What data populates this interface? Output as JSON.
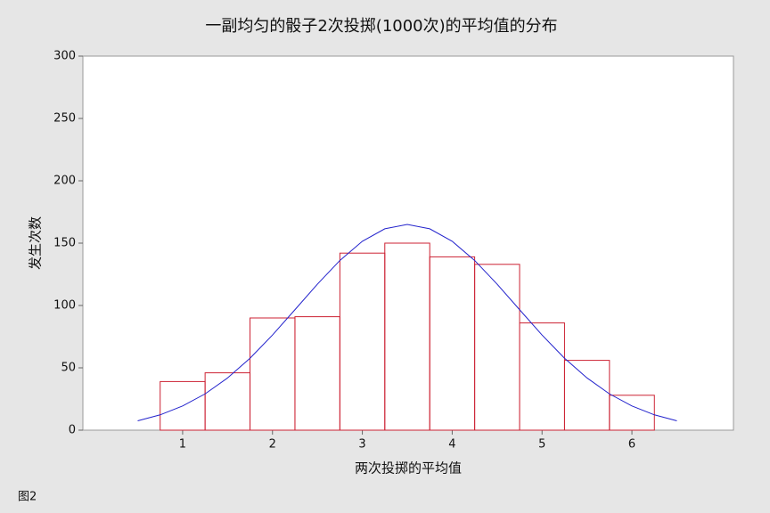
{
  "chart_data": {
    "type": "histogram",
    "title": "一副均匀的骰子2次投掷(1000次)的平均值的分布",
    "x_label": "两次投掷的平均值",
    "y_label": "发生次数",
    "footer": "图2",
    "bins": [
      0.75,
      1.25,
      1.75,
      2.25,
      2.75,
      3.25,
      3.75,
      4.25,
      4.75,
      5.25,
      5.75,
      6.25
    ],
    "values": [
      39,
      46,
      90,
      91,
      142,
      150,
      139,
      133,
      86,
      56,
      28
    ],
    "color": "#cc2233",
    "fit": {
      "color": "#2222cc",
      "x": [
        0.5,
        0.75,
        1.0,
        1.25,
        1.5,
        1.75,
        2.0,
        2.25,
        2.5,
        2.75,
        3.0,
        3.25,
        3.5,
        3.75,
        4.0,
        4.25,
        4.5,
        4.75,
        5.0,
        5.25,
        5.5,
        5.75,
        6.0,
        6.25,
        6.5
      ],
      "values": [
        7.5,
        12.3,
        19.4,
        29.1,
        41.9,
        57.7,
        76.3,
        96.6,
        117.1,
        136.1,
        151.5,
        161.5,
        165,
        161.5,
        151.5,
        136.1,
        117.1,
        96.6,
        76.3,
        57.7,
        41.9,
        29.1,
        19.4,
        12.3,
        7.5
      ]
    },
    "xlim": [
      -0.11,
      7.13
    ],
    "xticks": [
      1,
      2,
      3,
      4,
      5,
      6
    ],
    "ylim": [
      0,
      300
    ],
    "yticks": [
      0,
      50,
      100,
      150,
      200,
      250,
      300
    ]
  }
}
